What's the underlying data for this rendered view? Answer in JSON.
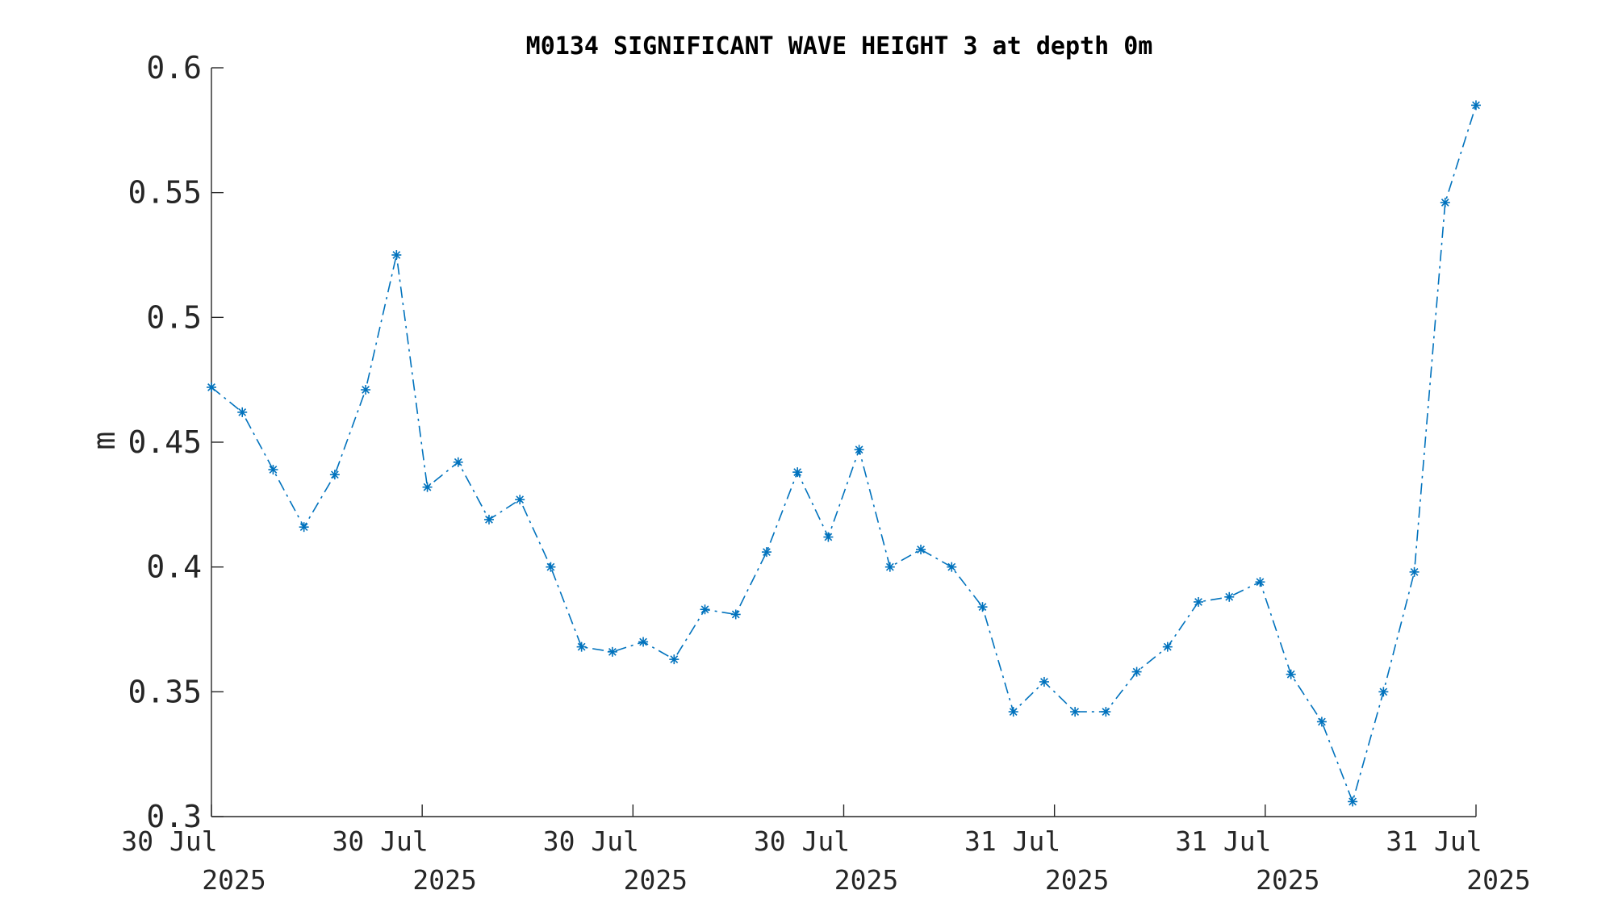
{
  "chart_data": {
    "type": "line",
    "title": "M0134 SIGNIFICANT WAVE HEIGHT 3 at depth 0m",
    "xlabel": "",
    "ylabel": "m",
    "ylim": [
      0.3,
      0.6
    ],
    "yticks": [
      0.3,
      0.35,
      0.4,
      0.45,
      0.5,
      0.55,
      0.6
    ],
    "ytick_labels": [
      "0.3",
      "0.35",
      "0.4",
      "0.45",
      "0.5",
      "0.55",
      "0.6"
    ],
    "xticks": [
      {
        "line1": "30 Jul",
        "line2": "2025"
      },
      {
        "line1": "30 Jul",
        "line2": "2025"
      },
      {
        "line1": "30 Jul",
        "line2": "2025"
      },
      {
        "line1": "30 Jul",
        "line2": "2025"
      },
      {
        "line1": "31 Jul",
        "line2": "2025"
      },
      {
        "line1": "31 Jul",
        "line2": "2025"
      },
      {
        "line1": "31 Jul",
        "line2": "2025"
      }
    ],
    "grid": false,
    "marker": "asterisk",
    "line_style": "dash-dot",
    "series_color": "#0072BD",
    "series": [
      {
        "values": [
          0.472,
          0.462,
          0.439,
          0.416,
          0.437,
          0.471,
          0.525,
          0.432,
          0.442,
          0.419,
          0.427,
          0.4,
          0.368,
          0.366,
          0.37,
          0.363,
          0.383,
          0.381,
          0.406,
          0.438,
          0.412,
          0.447,
          0.4,
          0.407,
          0.4,
          0.384,
          0.342,
          0.354,
          0.342,
          0.342,
          0.358,
          0.368,
          0.386,
          0.388,
          0.394,
          0.357,
          0.338,
          0.306,
          0.35,
          0.398,
          0.546,
          0.585
        ]
      }
    ]
  }
}
